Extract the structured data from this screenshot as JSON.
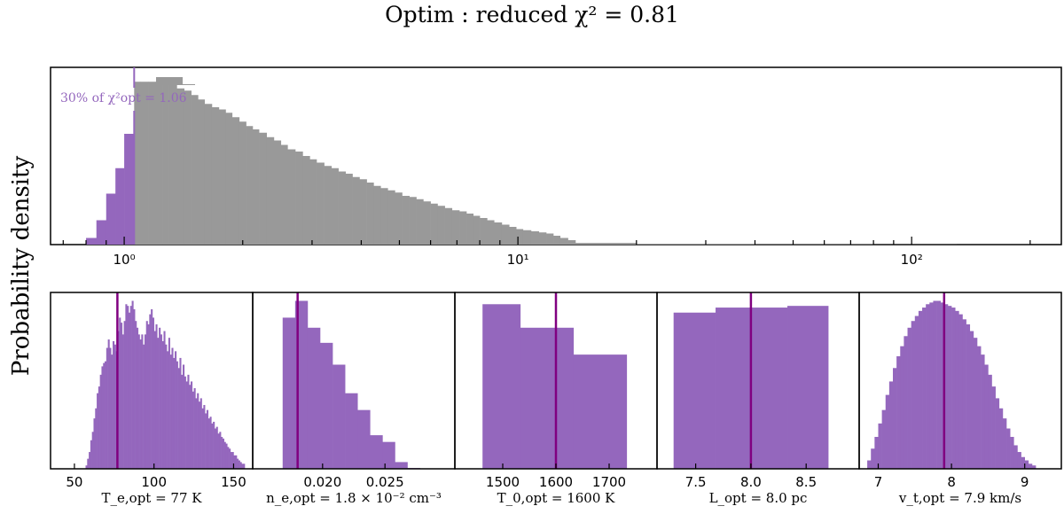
{
  "title": "Optim : reduced χ² =  0.81",
  "ylabel": "Probability density",
  "colors": {
    "accent": "#9467bd",
    "line": "#800080",
    "gray": "#999999"
  },
  "chart_data": [
    {
      "type": "bar",
      "name": "reduced chi2 distribution",
      "xscale": "log",
      "xlim": [
        0.65,
        240
      ],
      "xticks": [
        {
          "value": 1,
          "label": "10⁰"
        },
        {
          "value": 10,
          "label": "10¹"
        },
        {
          "value": 100,
          "label": "10²"
        }
      ],
      "threshold": {
        "value": 1.06,
        "label": "30% of χ²opt = 1.06"
      },
      "edges": [
        0.8,
        0.85,
        0.9,
        0.95,
        1.0,
        1.06,
        1.1,
        1.15,
        1.2,
        1.25,
        1.3,
        1.36,
        1.42,
        1.48,
        1.54,
        1.6,
        1.67,
        1.74,
        1.81,
        1.88,
        1.96,
        2.04,
        2.12,
        2.2,
        2.3,
        2.4,
        2.5,
        2.6,
        2.72,
        2.84,
        2.96,
        3.08,
        3.22,
        3.36,
        3.5,
        3.65,
        3.8,
        3.96,
        4.13,
        4.3,
        4.48,
        4.67,
        4.87,
        5.08,
        5.3,
        5.52,
        5.75,
        6.0,
        6.25,
        6.52,
        6.8,
        7.1,
        7.4,
        7.7,
        8.0,
        8.35,
        8.7,
        9.1,
        9.5,
        9.9,
        10.3,
        10.8,
        11.3,
        11.8,
        12.3,
        12.8,
        13.4,
        14.0,
        20,
        40,
        80,
        130,
        200
      ],
      "values": [
        0.06,
        0.22,
        0.46,
        0.69,
        1.0,
        1.47,
        1.47,
        1.47,
        1.47,
        1.47,
        1.47,
        1.41,
        1.39,
        1.35,
        1.31,
        1.27,
        1.24,
        1.22,
        1.19,
        1.15,
        1.11,
        1.07,
        1.04,
        1.01,
        0.97,
        0.94,
        0.9,
        0.86,
        0.84,
        0.8,
        0.77,
        0.74,
        0.71,
        0.69,
        0.66,
        0.64,
        0.61,
        0.59,
        0.56,
        0.53,
        0.51,
        0.49,
        0.47,
        0.44,
        0.43,
        0.41,
        0.39,
        0.37,
        0.35,
        0.33,
        0.31,
        0.3,
        0.28,
        0.26,
        0.24,
        0.22,
        0.2,
        0.18,
        0.16,
        0.14,
        0.13,
        0.12,
        0.11,
        0.1,
        0.08,
        0.06,
        0.04,
        0.015,
        0.007,
        0.003,
        0.001,
        0.0005
      ],
      "ylim": [
        0,
        1.6
      ]
    },
    {
      "type": "bar",
      "name": "Te posterior",
      "xlabel": "T_e,opt = 77 K",
      "xlim": [
        35,
        162
      ],
      "xticks": [
        50,
        100,
        150
      ],
      "xtick_labels": [
        "50",
        "100",
        "150"
      ],
      "optimum": 77,
      "bin_start": 57,
      "bin_width": 1,
      "values": [
        0.02,
        0.06,
        0.1,
        0.17,
        0.22,
        0.3,
        0.36,
        0.45,
        0.49,
        0.56,
        0.61,
        0.63,
        0.64,
        0.72,
        0.77,
        0.72,
        0.68,
        0.76,
        0.74,
        0.7,
        0.82,
        0.9,
        0.87,
        0.8,
        0.88,
        0.98,
        0.97,
        0.93,
        0.97,
        1.0,
        0.95,
        0.88,
        0.84,
        0.8,
        0.77,
        0.8,
        0.74,
        0.8,
        0.88,
        0.86,
        0.92,
        0.95,
        0.9,
        0.82,
        0.86,
        0.78,
        0.84,
        0.8,
        0.76,
        0.82,
        0.74,
        0.7,
        0.78,
        0.68,
        0.72,
        0.66,
        0.7,
        0.64,
        0.6,
        0.66,
        0.56,
        0.62,
        0.55,
        0.52,
        0.56,
        0.5,
        0.52,
        0.46,
        0.48,
        0.42,
        0.45,
        0.4,
        0.42,
        0.36,
        0.38,
        0.33,
        0.35,
        0.3,
        0.31,
        0.27,
        0.28,
        0.24,
        0.25,
        0.21,
        0.22,
        0.19,
        0.18,
        0.16,
        0.15,
        0.13,
        0.12,
        0.1,
        0.1,
        0.08,
        0.08,
        0.06,
        0.05,
        0.04,
        0.03,
        0.03
      ],
      "ylim": [
        0,
        1.05
      ]
    },
    {
      "type": "bar",
      "name": "ne posterior",
      "xlabel": "n_e,opt = 1.8 × 10⁻² cm⁻³",
      "xlim": [
        0.0144,
        0.0306
      ],
      "xticks": [
        0.02,
        0.025
      ],
      "xtick_labels": [
        "0.020",
        "0.025"
      ],
      "optimum": 0.018,
      "edges": [
        0.0168,
        0.0178,
        0.0188,
        0.0198,
        0.0208,
        0.0218,
        0.0228,
        0.0238,
        0.0248,
        0.0258,
        0.0268,
        0.0278
      ],
      "values": [
        0.9,
        1.0,
        0.84,
        0.75,
        0.62,
        0.45,
        0.35,
        0.2,
        0.16,
        0.04,
        0.005
      ],
      "ylim": [
        0,
        1.05
      ]
    },
    {
      "type": "bar",
      "name": "T0 posterior",
      "xlabel": "T_0,opt = 1600 K",
      "xlim": [
        1410,
        1790
      ],
      "xticks": [
        1500,
        1600,
        1700
      ],
      "xtick_labels": [
        "1500",
        "1600",
        "1700"
      ],
      "optimum": 1600,
      "edges": [
        1462,
        1533,
        1633,
        1733
      ],
      "values": [
        0.98,
        0.84,
        0.68
      ],
      "ylim": [
        0,
        1.05
      ]
    },
    {
      "type": "bar",
      "name": "L posterior",
      "xlabel": "L_opt = 8.0 pc",
      "xlim": [
        7.15,
        8.98
      ],
      "xticks": [
        7.5,
        8.0,
        8.5
      ],
      "xtick_labels": [
        "7.5",
        "8.0",
        "8.5"
      ],
      "optimum": 8.0,
      "edges": [
        7.3,
        7.68,
        8.0,
        8.33,
        8.7
      ],
      "values": [
        0.93,
        0.96,
        0.96,
        0.97
      ],
      "ylim": [
        0,
        1.05
      ]
    },
    {
      "type": "bar",
      "name": "vt posterior",
      "xlabel": "v_t,opt = 7.9 km/s",
      "xlim": [
        6.74,
        9.5
      ],
      "xticks": [
        7,
        8,
        9
      ],
      "xtick_labels": [
        "7",
        "8",
        "9"
      ],
      "optimum": 7.9,
      "edges": [
        6.85,
        6.9,
        6.95,
        7.0,
        7.05,
        7.1,
        7.15,
        7.2,
        7.25,
        7.3,
        7.35,
        7.4,
        7.45,
        7.5,
        7.55,
        7.6,
        7.65,
        7.7,
        7.75,
        7.8,
        7.85,
        7.9,
        7.95,
        8.0,
        8.05,
        8.1,
        8.15,
        8.2,
        8.25,
        8.3,
        8.35,
        8.4,
        8.45,
        8.5,
        8.55,
        8.6,
        8.65,
        8.7,
        8.75,
        8.8,
        8.85,
        8.9,
        8.95,
        9.0,
        9.05,
        9.1,
        9.15
      ],
      "values": [
        0.05,
        0.12,
        0.19,
        0.27,
        0.35,
        0.44,
        0.52,
        0.6,
        0.67,
        0.73,
        0.79,
        0.84,
        0.88,
        0.91,
        0.94,
        0.96,
        0.98,
        0.99,
        1.0,
        1.0,
        0.99,
        0.98,
        0.97,
        0.96,
        0.94,
        0.92,
        0.89,
        0.86,
        0.82,
        0.78,
        0.73,
        0.68,
        0.62,
        0.56,
        0.49,
        0.42,
        0.36,
        0.3,
        0.24,
        0.19,
        0.14,
        0.1,
        0.07,
        0.05,
        0.03,
        0.02
      ],
      "ylim": [
        0,
        1.05
      ]
    }
  ]
}
